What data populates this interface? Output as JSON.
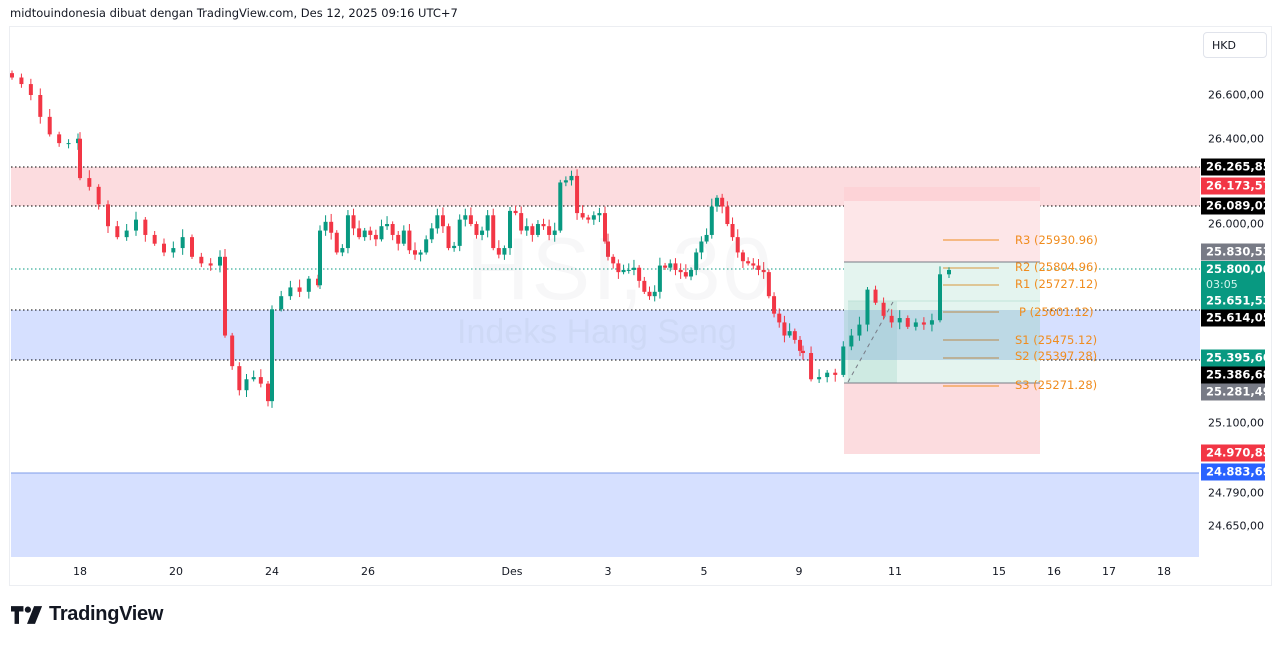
{
  "header": {
    "attribution": "midtouindonesia dibuat dengan TradingView.com, Des 12, 2025 09:16 UTC+7"
  },
  "watermark": {
    "symbol": "HSI, 30",
    "description": "Indeks Hang Seng"
  },
  "currency": "HKD",
  "brand": {
    "name": "TradingView",
    "icon": "tradingview-logo-icon"
  },
  "colors": {
    "up": "#089981",
    "down": "#f23645",
    "resistance_zone": "#fcdcdf",
    "support_zone": "#d6e0ff",
    "pivot": "#f08c1e",
    "tag_black": "#000000",
    "tag_red": "#f23645",
    "tag_green": "#089981",
    "tag_gray": "#787b86",
    "tag_blue": "#2962ff"
  },
  "price_axis": {
    "ticks": [
      "26.600,00",
      "26.400,00",
      "26.000,00",
      "25.100,00",
      "24.790,00",
      "24.650,00"
    ]
  },
  "price_tags": [
    {
      "value": "26.265,85",
      "color": "#000000"
    },
    {
      "value": "26.173,57",
      "color": "#f23645"
    },
    {
      "value": "26.089,02",
      "color": "#000000"
    },
    {
      "value": "25.830,53",
      "color": "#787b86"
    },
    {
      "value": "25.800,00",
      "color": "#089981",
      "countdown": "03:05"
    },
    {
      "value": "25.651,53",
      "color": "#089981"
    },
    {
      "value": "25.614,05",
      "color": "#000000"
    },
    {
      "value": "25.395,66",
      "color": "#089981"
    },
    {
      "value": "25.386,68",
      "color": "#000000"
    },
    {
      "value": "25.281,49",
      "color": "#787b86"
    },
    {
      "value": "24.970,85",
      "color": "#f23645"
    },
    {
      "value": "24.883,69",
      "color": "#2962ff"
    }
  ],
  "time_axis": {
    "ticks": [
      "18",
      "20",
      "24",
      "26",
      "Des",
      "3",
      "5",
      "9",
      "11",
      "15",
      "16",
      "17",
      "18"
    ]
  },
  "pivots": [
    {
      "label": "R3 (25930.96)"
    },
    {
      "label": "R2 (25804.96)"
    },
    {
      "label": "R1 (25727.12)"
    },
    {
      "label": "P (25601.12)"
    },
    {
      "label": "S1 (25475.12)"
    },
    {
      "label": "S2 (25397.28)"
    },
    {
      "label": "S3 (25271.28)"
    }
  ],
  "chart_data": {
    "type": "candlestick",
    "title": "HSI, 30 — Indeks Hang Seng",
    "timeframe": "30",
    "currency": "HKD",
    "xlabel": "",
    "ylabel": "HKD",
    "x_ticks": [
      "18",
      "20",
      "24",
      "26",
      "Des",
      "3",
      "5",
      "9",
      "11",
      "15",
      "16",
      "17",
      "18"
    ],
    "y_ticks": [
      26600,
      26400,
      26000,
      25100,
      24790,
      24650
    ],
    "ylim": [
      24560,
      26720
    ],
    "last_price": 25800.0,
    "zones": [
      {
        "name": "resistance",
        "from": 26089.02,
        "to": 26265.85,
        "color": "#fcdcdf"
      },
      {
        "name": "support",
        "from": 25386.68,
        "to": 25614.05,
        "color": "#d6e0ff"
      },
      {
        "name": "lower support",
        "from": 24560,
        "to": 24883.69,
        "color": "#d6e0ff"
      }
    ],
    "pivot_levels": [
      {
        "name": "R3",
        "value": 25930.96
      },
      {
        "name": "R2",
        "value": 25804.96
      },
      {
        "name": "R1",
        "value": 25727.12
      },
      {
        "name": "P",
        "value": 25601.12
      },
      {
        "name": "S1",
        "value": 25475.12
      },
      {
        "name": "S2",
        "value": 25397.28
      },
      {
        "name": "S3",
        "value": 25271.28
      }
    ],
    "position_tool": {
      "type": "long",
      "entry": 25281.49,
      "target": 25830.53,
      "stop": 24970.85,
      "upper_box_top": 26173.57
    },
    "approx_closes": [
      26680,
      26650,
      26600,
      26500,
      26420,
      26380,
      26380,
      26400,
      26220,
      26180,
      26100,
      26000,
      25950,
      25980,
      26030,
      25960,
      25920,
      25880,
      25900,
      25950,
      25860,
      25830,
      25820,
      25860,
      25500,
      25360,
      25250,
      25300,
      25310,
      25280,
      25200,
      25620,
      25680,
      25720,
      25700,
      25760,
      25730,
      25980,
      26020,
      25970,
      25880,
      25900,
      26050,
      25990,
      25950,
      25980,
      25960,
      25940,
      26000,
      26010,
      25960,
      25920,
      25980,
      25890,
      25870,
      25880,
      25940,
      25990,
      26050,
      26000,
      25900,
      25910,
      26030,
      26050,
      26010,
      25960,
      25980,
      26050,
      25900,
      25870,
      25900,
      26070,
      26060,
      25980,
      26000,
      25960,
      26010,
      26000,
      25960,
      25980,
      26200,
      26210,
      26230,
      26060,
      26040,
      26030,
      26050,
      26060,
      25930,
      25860,
      25830,
      25790,
      25800,
      25800,
      25810,
      25750,
      25700,
      25680,
      25700,
      25820,
      25810,
      25830,
      25800,
      25790,
      25770,
      25800,
      25880,
      25930,
      25960,
      26090,
      26130,
      26090,
      26010,
      25950,
      25880,
      25840,
      25830,
      25820,
      25800,
      25790,
      25680,
      25600,
      25560,
      25500,
      25520,
      25480,
      25430,
      25420,
      25300,
      25310,
      25330,
      25320,
      25450,
      25500,
      25550,
      25710,
      25650,
      25590,
      25560,
      25580,
      25540,
      25560,
      25550,
      25570,
      25780,
      25800
    ]
  }
}
